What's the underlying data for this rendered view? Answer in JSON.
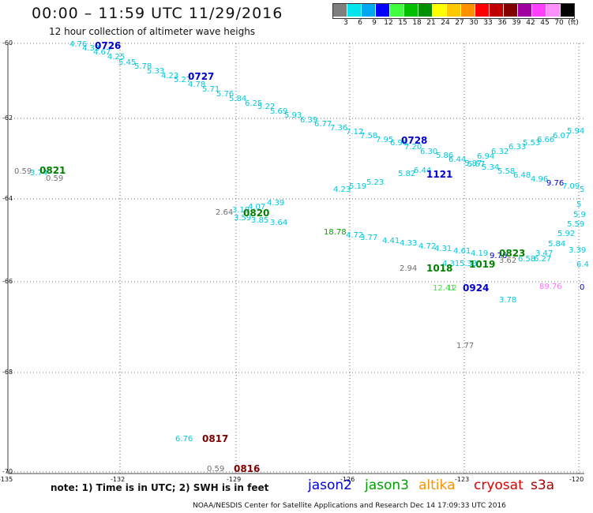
{
  "title": "00:00 – 11:59 UTC 11/29/2016",
  "subtitle": "12 hour collection of altimeter wave heighs",
  "legend": {
    "colors": [
      "#7f7f7f",
      "#00e5ee",
      "#00a8f0",
      "#0000ff",
      "#40ff40",
      "#00c000",
      "#009000",
      "#ffff00",
      "#ffc800",
      "#ff9000",
      "#ff0000",
      "#c00000",
      "#800000",
      "#a000a0",
      "#ff40ff",
      "#ff90ff",
      "#000000"
    ],
    "labels": [
      "3",
      "6",
      "9",
      "12",
      "15",
      "18",
      "21",
      "24",
      "27",
      "30",
      "33",
      "36",
      "39",
      "42",
      "45",
      "70",
      "(ft)"
    ]
  },
  "axes": {
    "lat_labels": [
      "-60",
      "-62",
      "-64",
      "-66",
      "-68",
      "-70"
    ],
    "lon_labels": [
      "-135",
      "-132",
      "-129",
      "-126",
      "-123",
      "-120"
    ]
  },
  "swh_obs": [
    {
      "t": "4.76",
      "c": "#00c8dc"
    },
    {
      "t": "4.33",
      "c": "#00c8dc"
    },
    {
      "t": "4.67",
      "c": "#00c8dc"
    },
    {
      "t": "4.25",
      "c": "#00c8dc"
    },
    {
      "t": "5.45",
      "c": "#00c8dc"
    },
    {
      "t": "5.78",
      "c": "#00c8dc"
    },
    {
      "t": "5.33",
      "c": "#00c8dc"
    },
    {
      "t": "4.23",
      "c": "#00c8dc"
    },
    {
      "t": "5.27",
      "c": "#00c8dc"
    },
    {
      "t": "4.78",
      "c": "#00c8dc"
    },
    {
      "t": "5.71",
      "c": "#00c8dc"
    },
    {
      "t": "5.76",
      "c": "#00c8dc"
    },
    {
      "t": "5.84",
      "c": "#00c8dc"
    },
    {
      "t": "6.25",
      "c": "#00c8dc"
    },
    {
      "t": "5.22",
      "c": "#00c8dc"
    },
    {
      "t": "5.69",
      "c": "#00c8dc"
    },
    {
      "t": "5.93",
      "c": "#00c8dc"
    },
    {
      "t": "6.39",
      "c": "#00c8dc"
    },
    {
      "t": "6.77",
      "c": "#00c8dc"
    },
    {
      "t": "7.36",
      "c": "#00c8dc"
    },
    {
      "t": "7.12",
      "c": "#00c8dc"
    },
    {
      "t": "7.58",
      "c": "#00c8dc"
    },
    {
      "t": "7.95",
      "c": "#00c8dc"
    },
    {
      "t": "6.96",
      "c": "#00c8dc"
    },
    {
      "t": "7.20",
      "c": "#00c8dc"
    },
    {
      "t": "6.30",
      "c": "#00c8dc"
    },
    {
      "t": "5.86",
      "c": "#00c8dc"
    },
    {
      "t": "6.44",
      "c": "#00c8dc"
    },
    {
      "t": "5.87",
      "c": "#00c8dc"
    },
    {
      "t": "6.94",
      "c": "#00c8dc"
    },
    {
      "t": "6.32",
      "c": "#00c8dc"
    },
    {
      "t": "6.33",
      "c": "#00c8dc"
    },
    {
      "t": "5.53",
      "c": "#00c8dc"
    },
    {
      "t": "6.66",
      "c": "#00c8dc"
    },
    {
      "t": "6.07",
      "c": "#00c8dc"
    },
    {
      "t": "5.94",
      "c": "#00c8dc"
    },
    {
      "t": "5.82",
      "c": "#00c8dc"
    },
    {
      "t": "6.44",
      "c": "#00c8dc"
    },
    {
      "t": "5.67",
      "c": "#00c8dc"
    },
    {
      "t": "5.34",
      "c": "#00c8dc"
    },
    {
      "t": "5.58",
      "c": "#00c8dc"
    },
    {
      "t": "6.48",
      "c": "#00c8dc"
    },
    {
      "t": "4.96",
      "c": "#00c8dc"
    },
    {
      "t": "9.76",
      "c": "#0000d0"
    },
    {
      "t": "7.09",
      "c": "#00c8dc"
    },
    {
      "t": "5",
      "c": "#00c8dc"
    },
    {
      "t": "4.23",
      "c": "#00c8dc"
    },
    {
      "t": "5.19",
      "c": "#00c8dc"
    },
    {
      "t": "5.23",
      "c": "#00c8dc"
    },
    {
      "t": "0.59",
      "c": "#707070"
    },
    {
      "t": "3.74",
      "c": "#00c8dc"
    },
    {
      "t": "0.59",
      "c": "#707070"
    },
    {
      "t": "2.64",
      "c": "#707070"
    },
    {
      "t": "3.19",
      "c": "#00c8dc"
    },
    {
      "t": "4.07",
      "c": "#00c8dc"
    },
    {
      "t": "4.39",
      "c": "#00c8dc"
    },
    {
      "t": "3.59",
      "c": "#00c8dc"
    },
    {
      "t": "3.85",
      "c": "#00c8dc"
    },
    {
      "t": "3.64",
      "c": "#00c8dc"
    },
    {
      "t": "18.78",
      "c": "#00a000"
    },
    {
      "t": "4.72",
      "c": "#00c8dc"
    },
    {
      "t": "3.77",
      "c": "#00c8dc"
    },
    {
      "t": "4.41",
      "c": "#00c8dc"
    },
    {
      "t": "4.33",
      "c": "#00c8dc"
    },
    {
      "t": "4.72",
      "c": "#00c8dc"
    },
    {
      "t": "4.31",
      "c": "#00c8dc"
    },
    {
      "t": "4.61",
      "c": "#00c8dc"
    },
    {
      "t": "4.19",
      "c": "#00c8dc"
    },
    {
      "t": "9.76",
      "c": "#0000d0"
    },
    {
      "t": "3.62",
      "c": "#707070"
    },
    {
      "t": "6.58",
      "c": "#00c8dc"
    },
    {
      "t": "6.27",
      "c": "#00c8dc"
    },
    {
      "t": "3.47",
      "c": "#00c8dc"
    },
    {
      "t": "5.84",
      "c": "#00c8dc"
    },
    {
      "t": "3.39",
      "c": "#00c8dc"
    },
    {
      "t": "5.92",
      "c": "#00c8dc"
    },
    {
      "t": "5.59",
      "c": "#00c8dc"
    },
    {
      "t": "5.9",
      "c": "#00c8dc"
    },
    {
      "t": "5",
      "c": "#00c8dc"
    },
    {
      "t": "6.4",
      "c": "#00c8dc"
    },
    {
      "t": "2.94",
      "c": "#707070"
    },
    {
      "t": "4.31",
      "c": "#00c8dc"
    },
    {
      "t": "5.33",
      "c": "#00c8dc"
    },
    {
      "t": "12.41",
      "c": "#40e040"
    },
    {
      "t": "12",
      "c": "#40e040"
    },
    {
      "t": "3.78",
      "c": "#00c8dc"
    },
    {
      "t": "1.77",
      "c": "#707070"
    },
    {
      "t": "89.76",
      "c": "#ff70ff"
    },
    {
      "t": "0",
      "c": "#0000d0"
    },
    {
      "t": "6.76",
      "c": "#00c8dc"
    },
    {
      "t": "0.59",
      "c": "#707070"
    }
  ],
  "pass_times": [
    {
      "t": "0726",
      "c": "#0000cc"
    },
    {
      "t": "0727",
      "c": "#0000cc"
    },
    {
      "t": "0728",
      "c": "#0000cc"
    },
    {
      "t": "1121",
      "c": "#0000cc"
    },
    {
      "t": "0821",
      "c": "#008000"
    },
    {
      "t": "0820",
      "c": "#008000"
    },
    {
      "t": "1018",
      "c": "#008000"
    },
    {
      "t": "1019",
      "c": "#008000"
    },
    {
      "t": "0823",
      "c": "#008000"
    },
    {
      "t": "0924",
      "c": "#0000cc"
    },
    {
      "t": "0817",
      "c": "#800000"
    },
    {
      "t": "0816",
      "c": "#800000"
    }
  ],
  "note": "note: 1) Time is in UTC; 2) SWH is in feet",
  "satellites": [
    {
      "name": "jason2",
      "color": "#0000dd"
    },
    {
      "name": "jason3",
      "color": "#00a000"
    },
    {
      "name": "altika",
      "color": "#ff9000"
    },
    {
      "name": "cryosat",
      "color": "#dd0000"
    },
    {
      "name": "s3a",
      "color": "#aa0000"
    }
  ],
  "credit": "NOAA/NESDIS Center for Satellite Applications and Research    Dec 14 17:09:33 UTC 2016"
}
